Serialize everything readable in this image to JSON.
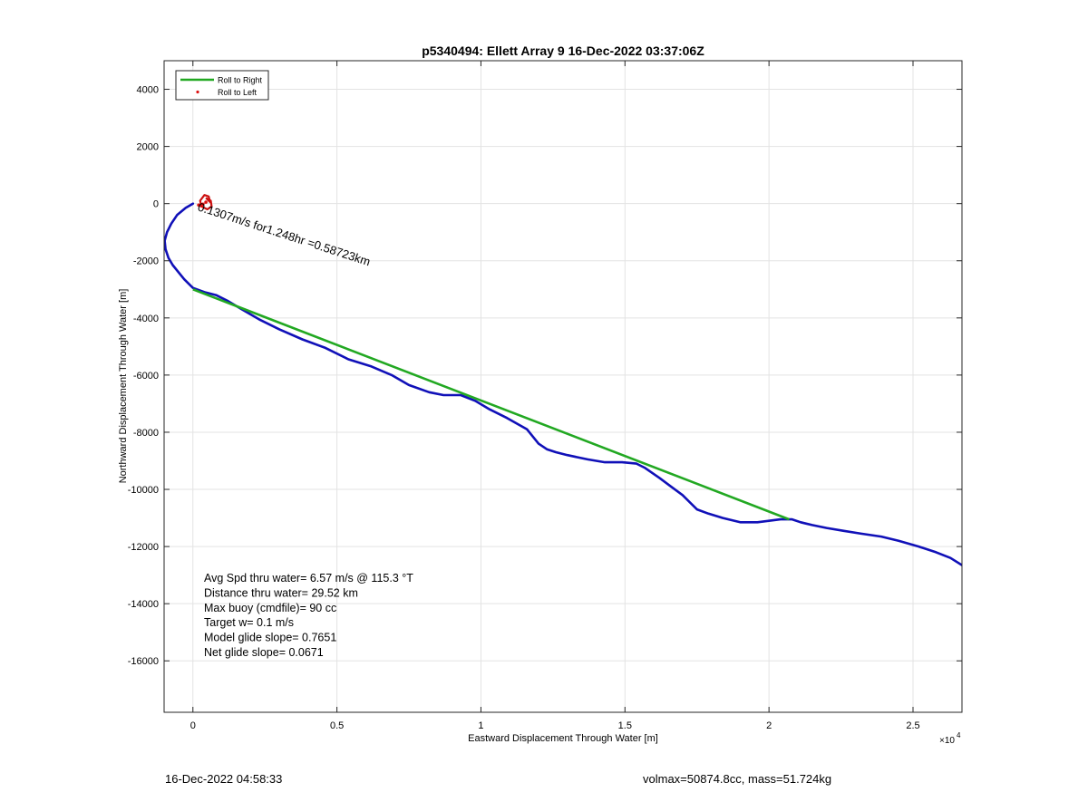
{
  "footer": {
    "left": "16-Dec-2022 04:58:33",
    "right": "volmax=50874.8cc, mass=51.724kg"
  },
  "chart_data": {
    "type": "line",
    "title": "p5340494: Ellett Array 9 16-Dec-2022 03:37:06Z",
    "xlabel": "Eastward Displacement Through Water [m]",
    "ylabel": "Northward Displacement Through Water [m]",
    "x_exponent_label": "×10^4",
    "xlim": [
      -1000,
      26700
    ],
    "ylim": [
      -17800,
      5000
    ],
    "x_ticks": [
      0,
      5000,
      10000,
      15000,
      20000,
      25000
    ],
    "x_tick_labels": [
      "0",
      "0.5",
      "1",
      "1.5",
      "2",
      "2.5"
    ],
    "y_ticks": [
      4000,
      2000,
      0,
      -2000,
      -4000,
      -6000,
      -8000,
      -10000,
      -12000,
      -14000,
      -16000
    ],
    "y_tick_labels": [
      "4000",
      "2000",
      "0",
      "-2000",
      "-4000",
      "-6000",
      "-8000",
      "-10000",
      "-12000",
      "-14000",
      "-16000"
    ],
    "grid": true,
    "legend_position": "top-left",
    "legend": [
      {
        "label": "Roll to Right",
        "color": "#22a822",
        "style": "line"
      },
      {
        "label": "Roll to Left",
        "color": "#dd1111",
        "style": "dot"
      }
    ],
    "series": [
      {
        "name": "Roll to Right",
        "color": "#22a822",
        "x": [
          0,
          20700
        ],
        "y": [
          -3000,
          -11050
        ]
      },
      {
        "color": "#1010b8",
        "x": [
          0,
          -250,
          -550,
          -750,
          -900,
          -980,
          -950,
          -850,
          -700,
          -500,
          -300,
          -100,
          0,
          400,
          800,
          1200,
          1700,
          2300,
          3000,
          3800,
          4600,
          5400,
          6200,
          6900,
          7500,
          8200,
          8700,
          9300,
          9800,
          10300,
          10900,
          11600,
          12000,
          12300,
          12600,
          13000,
          13700,
          14300,
          14900,
          15400,
          15700,
          16200,
          16600,
          17000,
          17500,
          17900,
          18400,
          19000,
          19600,
          20000,
          20400,
          20800,
          21100,
          21500,
          22000,
          22600,
          23200,
          23900,
          24500,
          25200,
          25800,
          26300,
          26700
        ],
        "y": [
          0,
          -150,
          -400,
          -700,
          -1000,
          -1300,
          -1600,
          -1900,
          -2150,
          -2400,
          -2650,
          -2850,
          -2950,
          -3100,
          -3200,
          -3400,
          -3700,
          -4050,
          -4400,
          -4750,
          -5050,
          -5450,
          -5700,
          -6000,
          -6350,
          -6600,
          -6700,
          -6700,
          -6900,
          -7200,
          -7500,
          -7900,
          -8400,
          -8600,
          -8700,
          -8800,
          -8950,
          -9050,
          -9050,
          -9100,
          -9250,
          -9600,
          -9900,
          -10200,
          -10700,
          -10850,
          -11000,
          -11150,
          -11150,
          -11100,
          -11050,
          -11050,
          -11150,
          -11250,
          -11350,
          -11450,
          -11550,
          -11650,
          -11800,
          -12000,
          -12200,
          -12400,
          -12650
        ]
      },
      {
        "name": "Roll to Left",
        "color": "#dd1111",
        "type": "scatter",
        "x": [
          200,
          300,
          350,
          450
        ],
        "y": [
          -50,
          -80,
          -20,
          50
        ]
      },
      {
        "color": "#cc1111",
        "type": "loop",
        "x": [
          450,
          620,
          650,
          500,
          300,
          250,
          400,
          550,
          600,
          450
        ],
        "y": [
          200,
          100,
          -100,
          -200,
          -100,
          100,
          300,
          250,
          50,
          200
        ]
      }
    ],
    "annotations": {
      "current": {
        "text": "0.1307m/s for1.248hr =0.58723km",
        "x": 200,
        "y": -50
      },
      "stats": [
        "Avg Spd thru water=  6.57 m/s @ 115.3 °T",
        "Distance thru water= 29.52 km",
        "Max buoy (cmdfile)= 90 cc",
        "Target w= 0.1 m/s",
        "Model glide slope= 0.7651",
        "Net glide slope= 0.0671"
      ]
    }
  }
}
